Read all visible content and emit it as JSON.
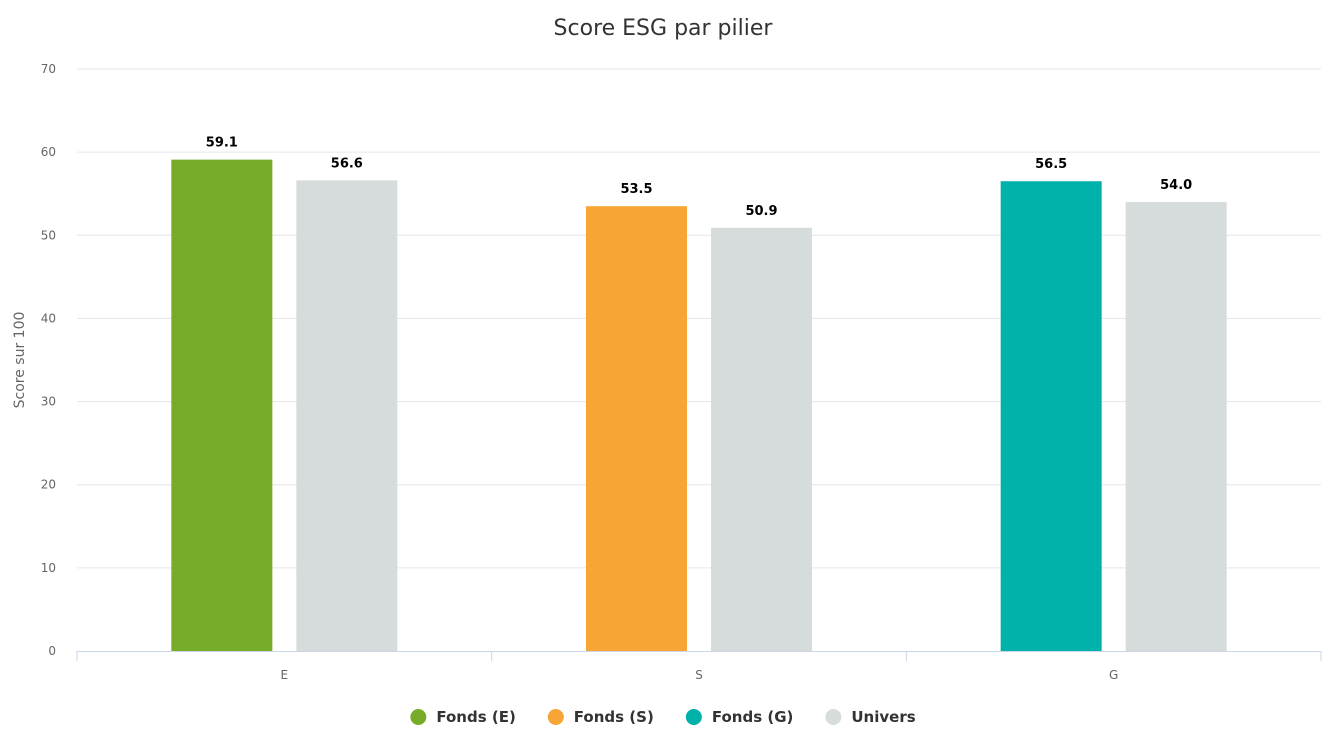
{
  "chart_data": {
    "type": "bar",
    "title": "Score ESG par pilier",
    "xlabel": "",
    "ylabel": "Score sur 100",
    "ylim": [
      0,
      70
    ],
    "yticks": [
      0,
      10,
      20,
      30,
      40,
      50,
      60,
      70
    ],
    "grid": true,
    "legend_position": "bottom",
    "categories": [
      "E",
      "S",
      "G"
    ],
    "groups": [
      {
        "category": "E",
        "bars": [
          {
            "series": "Fonds (E)",
            "value": 59.1,
            "label": "59.1",
            "color": "#76ac28"
          },
          {
            "series": "Univers",
            "value": 56.6,
            "label": "56.6",
            "color": "#d6dcdc"
          }
        ]
      },
      {
        "category": "S",
        "bars": [
          {
            "series": "Fonds (S)",
            "value": 53.5,
            "label": "53.5",
            "color": "#f7a535"
          },
          {
            "series": "Univers",
            "value": 50.9,
            "label": "50.9",
            "color": "#d6dcdc"
          }
        ]
      },
      {
        "category": "G",
        "bars": [
          {
            "series": "Fonds (G)",
            "value": 56.5,
            "label": "56.5",
            "color": "#00b2a9"
          },
          {
            "series": "Univers",
            "value": 54.0,
            "label": "54.0",
            "color": "#d6dcdc"
          }
        ]
      }
    ],
    "legend": [
      {
        "name": "Fonds (E)",
        "color": "#76ac28"
      },
      {
        "name": "Fonds (S)",
        "color": "#f7a535"
      },
      {
        "name": "Fonds (G)",
        "color": "#00b2a9"
      },
      {
        "name": "Univers",
        "color": "#d6dcdc"
      }
    ]
  }
}
